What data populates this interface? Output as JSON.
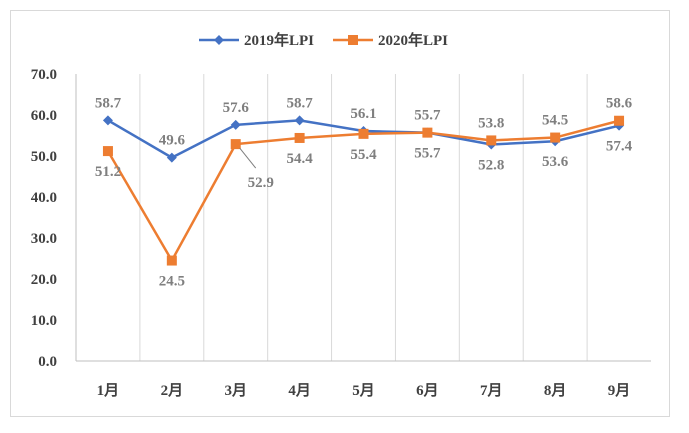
{
  "chart_data": {
    "type": "line",
    "title": "",
    "xlabel": "",
    "ylabel": "",
    "categories": [
      "1月",
      "2月",
      "3月",
      "4月",
      "5月",
      "6月",
      "7月",
      "8月",
      "9月"
    ],
    "ylim": [
      0,
      70
    ],
    "yticks": [
      "0.0",
      "10.0",
      "20.0",
      "30.0",
      "40.0",
      "50.0",
      "60.0",
      "70.0"
    ],
    "grid": "vertical",
    "legend_position": "top",
    "series": [
      {
        "name": "2019年LPI",
        "color": "#4472c4",
        "marker": "diamond",
        "values": [
          58.7,
          49.6,
          57.6,
          58.7,
          56.1,
          55.7,
          52.8,
          53.6,
          57.4
        ],
        "labels": [
          "58.7",
          "49.6",
          "57.6",
          "58.7",
          "56.1",
          "55.7",
          "52.8",
          "53.6",
          "57.4"
        ]
      },
      {
        "name": "2020年LPI",
        "color": "#ed7d31",
        "marker": "square",
        "values": [
          51.2,
          24.5,
          52.9,
          54.4,
          55.4,
          55.7,
          53.8,
          54.5,
          58.6
        ],
        "labels": [
          "51.2",
          "24.5",
          "52.9",
          "54.4",
          "55.4",
          "55.7",
          "53.8",
          "54.5",
          "58.6"
        ]
      }
    ]
  }
}
